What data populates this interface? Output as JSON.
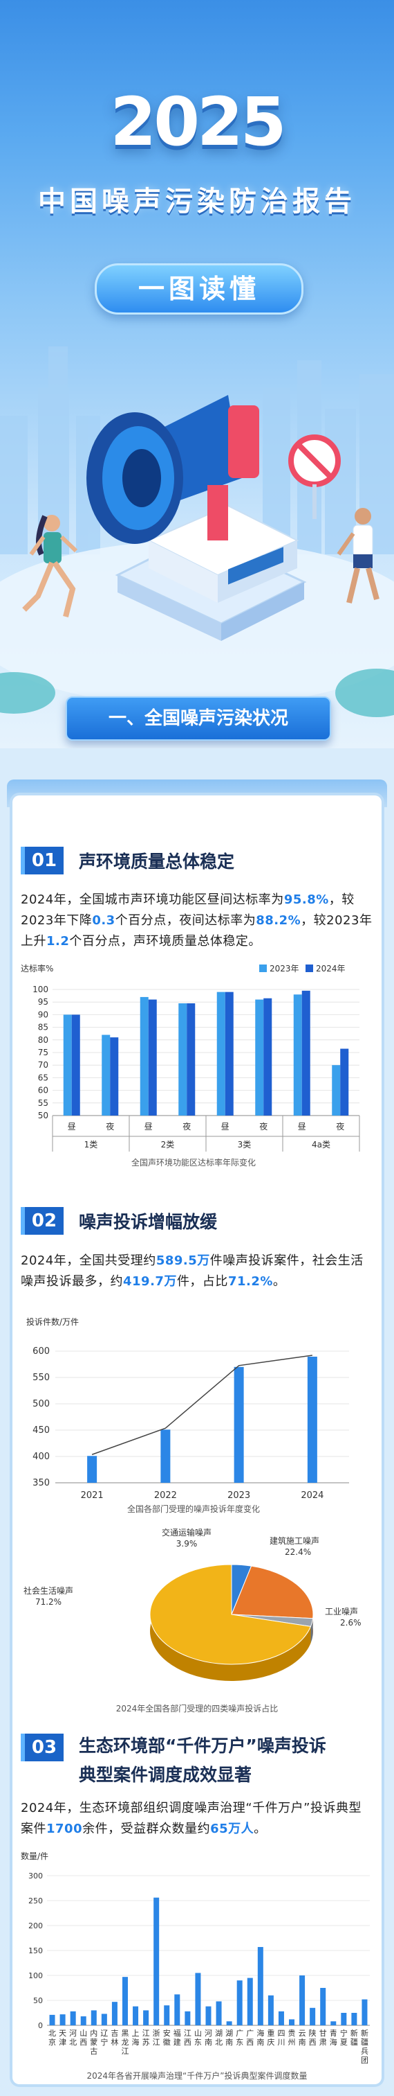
{
  "header": {
    "year": "2025",
    "title": "中国噪声污染防治报告",
    "subtitle": "一图读懂",
    "section": "一、全国噪声污染状况"
  },
  "s1": {
    "num": "01",
    "title": "声环境质量总体稳定",
    "p1": "2024年，全国城市声环境功能区昼间达标率为",
    "v1": "95.8%",
    "p2": "，较2023年下降",
    "v2": "0.3",
    "p3": "个百分点，夜间达标率为",
    "v3": "88.2%",
    "p4": "，较2023年上升",
    "v4": "1.2",
    "p5": "个百分点，声环境质量总体稳定。"
  },
  "s2": {
    "num": "02",
    "title": "噪声投诉增幅放缓",
    "p1": "2024年，全国共受理约",
    "v1": "589.5万",
    "p2": "件噪声投诉案件，社会生活噪声投诉最多，约",
    "v2": "419.7万",
    "p3": "件，占比",
    "v3": "71.2%",
    "p4": "。"
  },
  "s3": {
    "num": "03",
    "title1": "生态环境部“千件万户”噪声投诉",
    "title2": "典型案件调度成效显著",
    "p1": "2024年，生态环境部组织调度噪声治理“千件万户”投诉典型案件",
    "v1": "1700",
    "p2": "余件，受益群众数量约",
    "v2": "65万人",
    "p3": "。"
  },
  "colors": {
    "s2023": "#3aa0ec",
    "s2024": "#1f5fd0",
    "accent": "#1f7ee8"
  },
  "chart_data": [
    {
      "type": "bar",
      "ylabel": "达标率%",
      "ylim": [
        50,
        100
      ],
      "yticks": [
        50,
        55,
        60,
        65,
        70,
        75,
        80,
        85,
        90,
        95,
        100
      ],
      "categories": [
        "昼",
        "夜",
        "昼",
        "夜",
        "昼",
        "夜",
        "昼",
        "夜"
      ],
      "groups": [
        "1类",
        "2类",
        "3类",
        "4a类"
      ],
      "series": [
        {
          "name": "2023年",
          "values": [
            90.0,
            82.0,
            97.0,
            94.5,
            99.0,
            96.0,
            98.0,
            70.0
          ]
        },
        {
          "name": "2024年",
          "values": [
            90.0,
            81.0,
            96.0,
            94.5,
            99.0,
            96.5,
            99.5,
            76.5
          ]
        }
      ],
      "title": "全国声环境功能区达标率年际变化"
    },
    {
      "type": "line",
      "ylabel": "投诉件数/万件",
      "ylim": [
        350,
        600
      ],
      "yticks": [
        350,
        400,
        450,
        500,
        550,
        600
      ],
      "categories": [
        "2021",
        "2022",
        "2023",
        "2024"
      ],
      "values": [
        401,
        451,
        570,
        589.5
      ],
      "title": "全国各部门受理的噪声投诉年度变化"
    },
    {
      "type": "pie",
      "labels": [
        "交通运输噪声",
        "建筑施工噪声",
        "工业噪声",
        "社会生活噪声"
      ],
      "values": [
        3.9,
        22.4,
        2.6,
        71.2
      ],
      "display_values": [
        "3.9%",
        "22.4%",
        "2.6%",
        "71.2%"
      ],
      "colors": [
        "#2f7fd6",
        "#e8772a",
        "#9aa3ad",
        "#f2b418"
      ],
      "title": "2024年全国各部门受理的四类噪声投诉占比"
    },
    {
      "type": "bar",
      "ylabel": "数量/件",
      "ylim": [
        0,
        300
      ],
      "yticks": [
        0,
        50,
        100,
        150,
        200,
        250,
        300
      ],
      "categories": [
        "北京",
        "天津",
        "河北",
        "山西",
        "内蒙古",
        "辽宁",
        "吉林",
        "黑龙江",
        "上海",
        "江苏",
        "浙江",
        "安徽",
        "福建",
        "江西",
        "山东",
        "河南",
        "湖北",
        "湖南",
        "广东",
        "广西",
        "海南",
        "重庆",
        "四川",
        "贵州",
        "云南",
        "陕西",
        "甘肃",
        "青海",
        "宁夏",
        "新疆",
        "新疆兵团"
      ],
      "values": [
        21,
        22,
        28,
        18,
        30,
        23,
        47,
        97,
        38,
        30,
        256,
        40,
        62,
        28,
        105,
        38,
        48,
        8,
        90,
        95,
        157,
        60,
        28,
        12,
        100,
        35,
        75,
        8,
        25,
        25,
        52
      ],
      "title": "2024年各省开展噪声治理“千件万户”投诉典型案件调度数量"
    }
  ]
}
